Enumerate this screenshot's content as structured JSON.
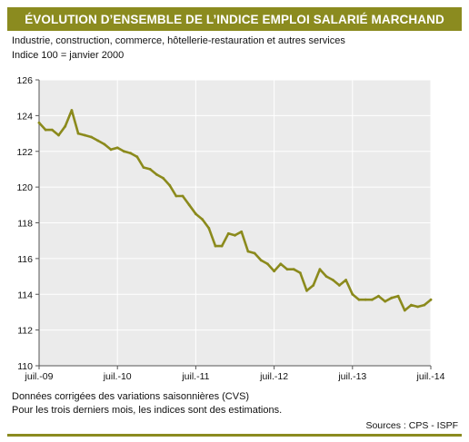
{
  "header": {
    "title": "ÉVOLUTION D’ENSEMBLE DE L’INDICE EMPLOI SALARIÉ MARCHAND",
    "subtitle": "Industrie, construction, commerce, hôtellerie-restauration et autres services",
    "subtitle2": "Indice 100 = janvier 2000"
  },
  "footer": {
    "note1": "Données corrigées des variations saisonnières (CVS)",
    "note2": "Pour les trois derniers mois, les indices sont des estimations.",
    "source": "Sources : CPS - ISPF"
  },
  "colors": {
    "accent": "#8b8b1f",
    "line": "#8b8a1c",
    "plot_background": "#ebebeb",
    "grid": "#ffffff"
  },
  "chart_data": {
    "type": "line",
    "title": "ÉVOLUTION D’ENSEMBLE DE L’INDICE EMPLOI SALARIÉ MARCHAND",
    "xlabel": "",
    "ylabel": "",
    "x_ticks": [
      "juil.-09",
      "juil.-10",
      "juil.-11",
      "juil.-12",
      "juil.-13",
      "juil.-14"
    ],
    "y_ticks": [
      110,
      112,
      114,
      116,
      118,
      120,
      122,
      124,
      126
    ],
    "ylim": [
      110,
      126
    ],
    "xlim": [
      "2009-07",
      "2014-07"
    ],
    "grid": "vertical and horizontal",
    "legend": "none",
    "series": [
      {
        "x": [
          "2009-07",
          "2009-08",
          "2009-09",
          "2009-10",
          "2009-11",
          "2009-12",
          "2010-01",
          "2010-02",
          "2010-03",
          "2010-04",
          "2010-05",
          "2010-06",
          "2010-07",
          "2010-08",
          "2010-09",
          "2010-10",
          "2010-11",
          "2010-12",
          "2011-01",
          "2011-02",
          "2011-03",
          "2011-04",
          "2011-05",
          "2011-06",
          "2011-07",
          "2011-08",
          "2011-09",
          "2011-10",
          "2011-11",
          "2011-12",
          "2012-01",
          "2012-02",
          "2012-03",
          "2012-04",
          "2012-05",
          "2012-06",
          "2012-07",
          "2012-08",
          "2012-09",
          "2012-10",
          "2012-11",
          "2012-12",
          "2013-01",
          "2013-02",
          "2013-03",
          "2013-04",
          "2013-05",
          "2013-06",
          "2013-07",
          "2013-08",
          "2013-09",
          "2013-10",
          "2013-11",
          "2013-12",
          "2014-01",
          "2014-02",
          "2014-03",
          "2014-04",
          "2014-05",
          "2014-06",
          "2014-07"
        ],
        "values": [
          123.6,
          123.2,
          123.2,
          122.9,
          123.4,
          124.3,
          123.0,
          122.9,
          122.8,
          122.6,
          122.4,
          122.1,
          122.2,
          122.0,
          121.9,
          121.7,
          121.1,
          121.0,
          120.7,
          120.5,
          120.1,
          119.5,
          119.5,
          119.0,
          118.5,
          118.2,
          117.7,
          116.7,
          116.7,
          117.4,
          117.3,
          117.5,
          116.4,
          116.3,
          115.9,
          115.7,
          115.3,
          115.7,
          115.4,
          115.4,
          115.2,
          114.2,
          114.5,
          115.4,
          115.0,
          114.8,
          114.5,
          114.8,
          114.0,
          113.7,
          113.7,
          113.7,
          113.9,
          113.6,
          113.8,
          113.9,
          113.1,
          113.4,
          113.3,
          113.4,
          113.7
        ]
      }
    ]
  }
}
